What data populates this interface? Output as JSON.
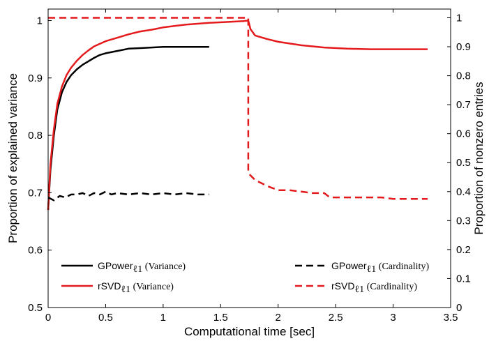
{
  "chart_data": {
    "type": "line",
    "xlabel": "Computational time [sec]",
    "ylabel_left": "Proportion of explained variance",
    "ylabel_right": "Proportion of nonzero entries",
    "xlim": [
      0,
      3.5
    ],
    "ylim_left": [
      0.5,
      1.02
    ],
    "ylim_right": [
      0,
      1.03
    ],
    "xticks": [
      0,
      0.5,
      1,
      1.5,
      2,
      2.5,
      3,
      3.5
    ],
    "xtick_labels": [
      "0",
      "0.5",
      "1",
      "1.5",
      "2",
      "2.5",
      "3",
      "3.5"
    ],
    "yticks_left": [
      0.5,
      0.6,
      0.7,
      0.8,
      0.9,
      1.0
    ],
    "ytick_labels_left": [
      "0.5",
      "0.6",
      "0.7",
      "0.8",
      "0.9",
      "1"
    ],
    "yticks_right": [
      0,
      0.1,
      0.2,
      0.3,
      0.4,
      0.5,
      0.6,
      0.7,
      0.8,
      0.9,
      1.0
    ],
    "ytick_labels_right": [
      "0",
      "0.1",
      "0.2",
      "0.3",
      "0.4",
      "0.5",
      "0.6",
      "0.7",
      "0.8",
      "0.9",
      "1"
    ],
    "grid": false,
    "legend_placement": "bottom",
    "series": [
      {
        "name": "GPower",
        "name_sub": "ℓ1",
        "name_suffix": "(Variance)",
        "axis": "left",
        "color": "#000000",
        "dash": "solid",
        "x": [
          0,
          0.02,
          0.05,
          0.08,
          0.12,
          0.16,
          0.2,
          0.25,
          0.3,
          0.35,
          0.4,
          0.45,
          0.5,
          0.6,
          0.7,
          0.8,
          0.9,
          1.0,
          1.1,
          1.2,
          1.3,
          1.4
        ],
        "y": [
          0.67,
          0.74,
          0.8,
          0.845,
          0.875,
          0.893,
          0.905,
          0.915,
          0.923,
          0.929,
          0.935,
          0.94,
          0.943,
          0.947,
          0.951,
          0.952,
          0.953,
          0.954,
          0.954,
          0.954,
          0.954,
          0.954
        ]
      },
      {
        "name": "rSVD",
        "name_sub": "ℓ1",
        "name_suffix": "(Variance)",
        "axis": "left",
        "color": "#e41a1c",
        "dash": "solid",
        "x": [
          0,
          0.02,
          0.05,
          0.08,
          0.12,
          0.16,
          0.2,
          0.25,
          0.3,
          0.35,
          0.4,
          0.5,
          0.6,
          0.7,
          0.8,
          0.9,
          1.0,
          1.2,
          1.4,
          1.6,
          1.7,
          1.74,
          1.76,
          1.8,
          1.9,
          2.0,
          2.2,
          2.4,
          2.6,
          2.8,
          3.0,
          3.3
        ],
        "y": [
          0.67,
          0.75,
          0.81,
          0.855,
          0.885,
          0.905,
          0.918,
          0.93,
          0.94,
          0.948,
          0.955,
          0.964,
          0.97,
          0.976,
          0.981,
          0.984,
          0.988,
          0.993,
          0.996,
          0.998,
          0.999,
          1.0,
          0.985,
          0.974,
          0.968,
          0.963,
          0.957,
          0.953,
          0.951,
          0.95,
          0.95,
          0.95
        ]
      },
      {
        "name": "GPower",
        "name_sub": "ℓ1",
        "name_suffix": "(Cardinality)",
        "axis": "right",
        "color": "#000000",
        "dash": "dashed",
        "x": [
          0,
          0.05,
          0.1,
          0.15,
          0.2,
          0.25,
          0.3,
          0.35,
          0.4,
          0.45,
          0.5,
          0.55,
          0.6,
          0.7,
          0.8,
          0.9,
          1.0,
          1.1,
          1.2,
          1.3,
          1.4
        ],
        "y": [
          0.38,
          0.37,
          0.385,
          0.38,
          0.39,
          0.39,
          0.395,
          0.385,
          0.395,
          0.39,
          0.4,
          0.39,
          0.395,
          0.39,
          0.395,
          0.39,
          0.395,
          0.39,
          0.395,
          0.39,
          0.39
        ]
      },
      {
        "name": "rSVD",
        "name_sub": "ℓ1",
        "name_suffix": "(Cardinality)",
        "axis": "right",
        "color": "#e41a1c",
        "dash": "dashed",
        "x": [
          0,
          1.74,
          1.74,
          1.75,
          1.8,
          1.85,
          1.9,
          2.0,
          2.1,
          2.2,
          2.3,
          2.4,
          2.45,
          2.5,
          2.6,
          2.7,
          2.8,
          2.9,
          3.0,
          3.1,
          3.2,
          3.3
        ],
        "y": [
          1.0,
          1.0,
          0.47,
          0.46,
          0.44,
          0.43,
          0.42,
          0.405,
          0.405,
          0.4,
          0.395,
          0.395,
          0.38,
          0.38,
          0.38,
          0.38,
          0.38,
          0.38,
          0.375,
          0.375,
          0.375,
          0.375
        ]
      }
    ]
  }
}
